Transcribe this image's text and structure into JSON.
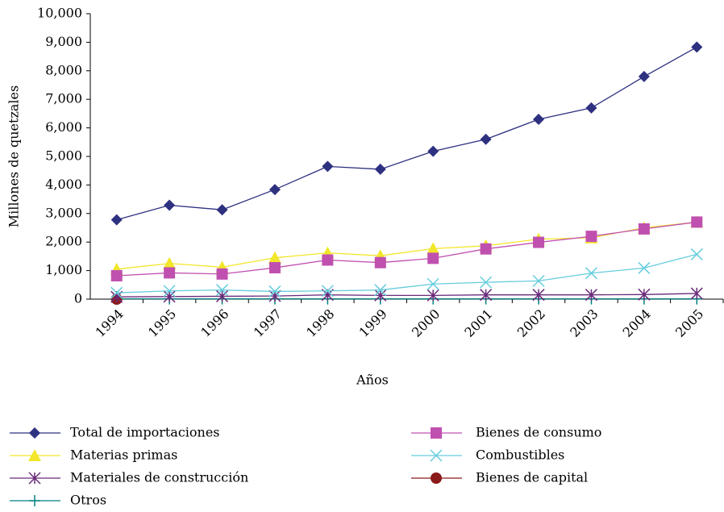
{
  "chart_data": {
    "type": "line",
    "x_label": "Años",
    "y_label": "Millones de quetzales",
    "categories": [
      "1994",
      "1995",
      "1996",
      "1997",
      "1998",
      "1999",
      "2000",
      "2001",
      "2002",
      "2003",
      "2004",
      "2005"
    ],
    "ylim": [
      0,
      10000
    ],
    "yticks": [
      0,
      {
        "value": 1000,
        "label": "1,000"
      },
      {
        "value": 2000,
        "label": "2,000"
      },
      {
        "value": 3000,
        "label": "3,000"
      },
      {
        "value": 4000,
        "label": "4,000"
      },
      {
        "value": 5000,
        "label": "5,000"
      },
      {
        "value": 6000,
        "label": "6,000"
      },
      {
        "value": 7000,
        "label": "7,000"
      },
      {
        "value": 8000,
        "label": "8,000"
      },
      {
        "value": 9000,
        "label": "9,000"
      },
      {
        "value": 10000,
        "label": "10,000"
      }
    ],
    "grid": false,
    "legend": "bottom",
    "series": [
      {
        "name": "Total de importaciones",
        "color": "#2e3080",
        "marker": "diamond",
        "values": [
          2780,
          3290,
          3130,
          3840,
          4650,
          4550,
          5180,
          5600,
          6300,
          6700,
          7800,
          8830
        ]
      },
      {
        "name": "Bienes de consumo",
        "color": "#c050b0",
        "marker": "square",
        "values": [
          820,
          920,
          880,
          1100,
          1370,
          1280,
          1430,
          1760,
          1990,
          2200,
          2460,
          2700
        ]
      },
      {
        "name": "Materias primas",
        "color": "#f2e62a",
        "marker": "triangle",
        "values": [
          1050,
          1250,
          1120,
          1450,
          1620,
          1520,
          1770,
          1870,
          2100,
          2150,
          2500,
          2700
        ]
      },
      {
        "name": "Combustibles",
        "color": "#66ccdd",
        "marker": "x",
        "values": [
          220,
          290,
          320,
          270,
          290,
          320,
          530,
          590,
          640,
          910,
          1090,
          1570
        ]
      },
      {
        "name": "Materiales de construcción",
        "color": "#6a2a7a",
        "marker": "asterisk",
        "values": [
          80,
          90,
          100,
          110,
          150,
          130,
          130,
          150,
          150,
          150,
          160,
          200
        ]
      },
      {
        "name": "Bienes de capital",
        "color": "#8b1a1a",
        "marker": "circle",
        "values": [
          0,
          null,
          null,
          null,
          null,
          null,
          null,
          null,
          null,
          null,
          null,
          null
        ]
      },
      {
        "name": "Otros",
        "color": "#008080",
        "marker": "plus",
        "values": [
          10,
          10,
          10,
          10,
          10,
          10,
          10,
          10,
          10,
          10,
          10,
          10
        ]
      }
    ]
  }
}
